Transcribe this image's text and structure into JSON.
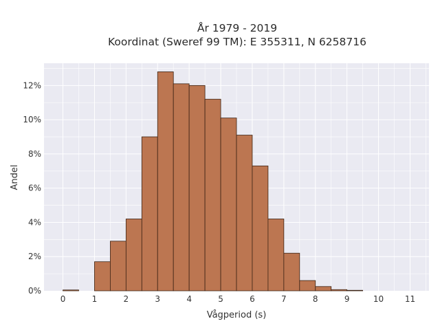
{
  "chart_data": {
    "type": "bar",
    "title": "År 1979 - 2019",
    "subtitle": "Koordinat (Sweref 99 TM): E 355311, N 6258716",
    "xlabel": "Vågperiod (s)",
    "ylabel": "Andel",
    "x_ticks": [
      0,
      1,
      2,
      3,
      4,
      5,
      6,
      7,
      8,
      9,
      10,
      11
    ],
    "x_tick_labels": [
      "0",
      "1",
      "2",
      "3",
      "4",
      "5",
      "6",
      "7",
      "8",
      "9",
      "10",
      "11"
    ],
    "y_ticks": [
      0,
      2,
      4,
      6,
      8,
      10,
      12
    ],
    "y_tick_labels": [
      "0%",
      "2%",
      "4%",
      "6%",
      "8%",
      "10%",
      "12%"
    ],
    "xlim": [
      -0.6,
      11.6
    ],
    "ylim": [
      0,
      13.3
    ],
    "bin_width": 0.5,
    "bins": [
      {
        "x0": 0.0,
        "value": 0.05
      },
      {
        "x0": 0.5,
        "value": 0.0
      },
      {
        "x0": 1.0,
        "value": 1.7
      },
      {
        "x0": 1.5,
        "value": 2.9
      },
      {
        "x0": 2.0,
        "value": 4.2
      },
      {
        "x0": 2.5,
        "value": 9.0
      },
      {
        "x0": 3.0,
        "value": 12.8
      },
      {
        "x0": 3.5,
        "value": 12.1
      },
      {
        "x0": 4.0,
        "value": 12.0
      },
      {
        "x0": 4.5,
        "value": 11.2
      },
      {
        "x0": 5.0,
        "value": 10.1
      },
      {
        "x0": 5.5,
        "value": 9.1
      },
      {
        "x0": 6.0,
        "value": 7.3
      },
      {
        "x0": 6.5,
        "value": 4.2
      },
      {
        "x0": 7.0,
        "value": 2.2
      },
      {
        "x0": 7.5,
        "value": 0.6
      },
      {
        "x0": 8.0,
        "value": 0.25
      },
      {
        "x0": 8.5,
        "value": 0.07
      },
      {
        "x0": 9.0,
        "value": 0.03
      }
    ],
    "grid": true,
    "colors": {
      "bar_fill": "#bc7651",
      "bar_edge": "#3c2415",
      "plot_background": "#eaeaf2",
      "grid": "#ffffff"
    }
  }
}
